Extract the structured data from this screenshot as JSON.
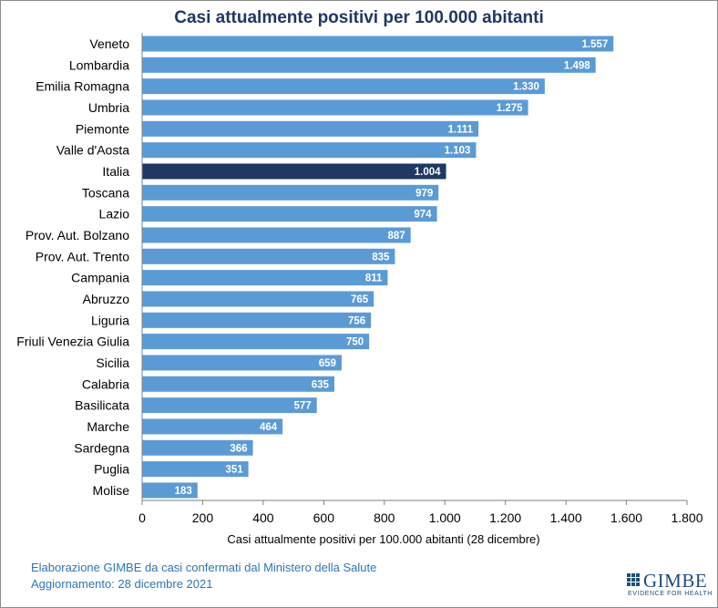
{
  "chart_data": {
    "type": "bar",
    "orientation": "horizontal",
    "title": "Casi attualmente positivi per 100.000 abitanti",
    "xlabel": "Casi attualmente positivi per 100.000 abitanti (28 dicembre)",
    "ylabel": "",
    "xlim": [
      0,
      1800
    ],
    "xticks": [
      0,
      200,
      400,
      600,
      800,
      1000,
      1200,
      1400,
      1600,
      1800
    ],
    "xtick_labels": [
      "0",
      "200",
      "400",
      "600",
      "800",
      "1.000",
      "1.200",
      "1.400",
      "1.600",
      "1.800"
    ],
    "grid": false,
    "legend": "none",
    "colors": {
      "default": "#5b9bd5",
      "highlight": "#1f3864"
    },
    "highlight_category": "Italia",
    "categories": [
      "Veneto",
      "Lombardia",
      "Emilia Romagna",
      "Umbria",
      "Piemonte",
      "Valle d'Aosta",
      "Italia",
      "Toscana",
      "Lazio",
      "Prov. Aut. Bolzano",
      "Prov. Aut. Trento",
      "Campania",
      "Abruzzo",
      "Liguria",
      "Friuli Venezia Giulia",
      "Sicilia",
      "Calabria",
      "Basilicata",
      "Marche",
      "Sardegna",
      "Puglia",
      "Molise"
    ],
    "values": [
      1557,
      1498,
      1330,
      1275,
      1111,
      1103,
      1004,
      979,
      974,
      887,
      835,
      811,
      765,
      756,
      750,
      659,
      635,
      577,
      464,
      366,
      351,
      183
    ],
    "value_labels": [
      "1.557",
      "1.498",
      "1.330",
      "1.275",
      "1.111",
      "1.103",
      "1.004",
      "979",
      "974",
      "887",
      "835",
      "811",
      "765",
      "756",
      "750",
      "659",
      "635",
      "577",
      "464",
      "366",
      "351",
      "183"
    ]
  },
  "footer": {
    "line1": "Elaborazione GIMBE da casi confermati dal Ministero della Salute",
    "line2": "Aggiornamento: 28 dicembre 2021"
  },
  "logo": {
    "name": "GIMBE",
    "tagline": "EVIDENCE FOR HEALTH",
    "icon": "grid-squares-icon"
  }
}
